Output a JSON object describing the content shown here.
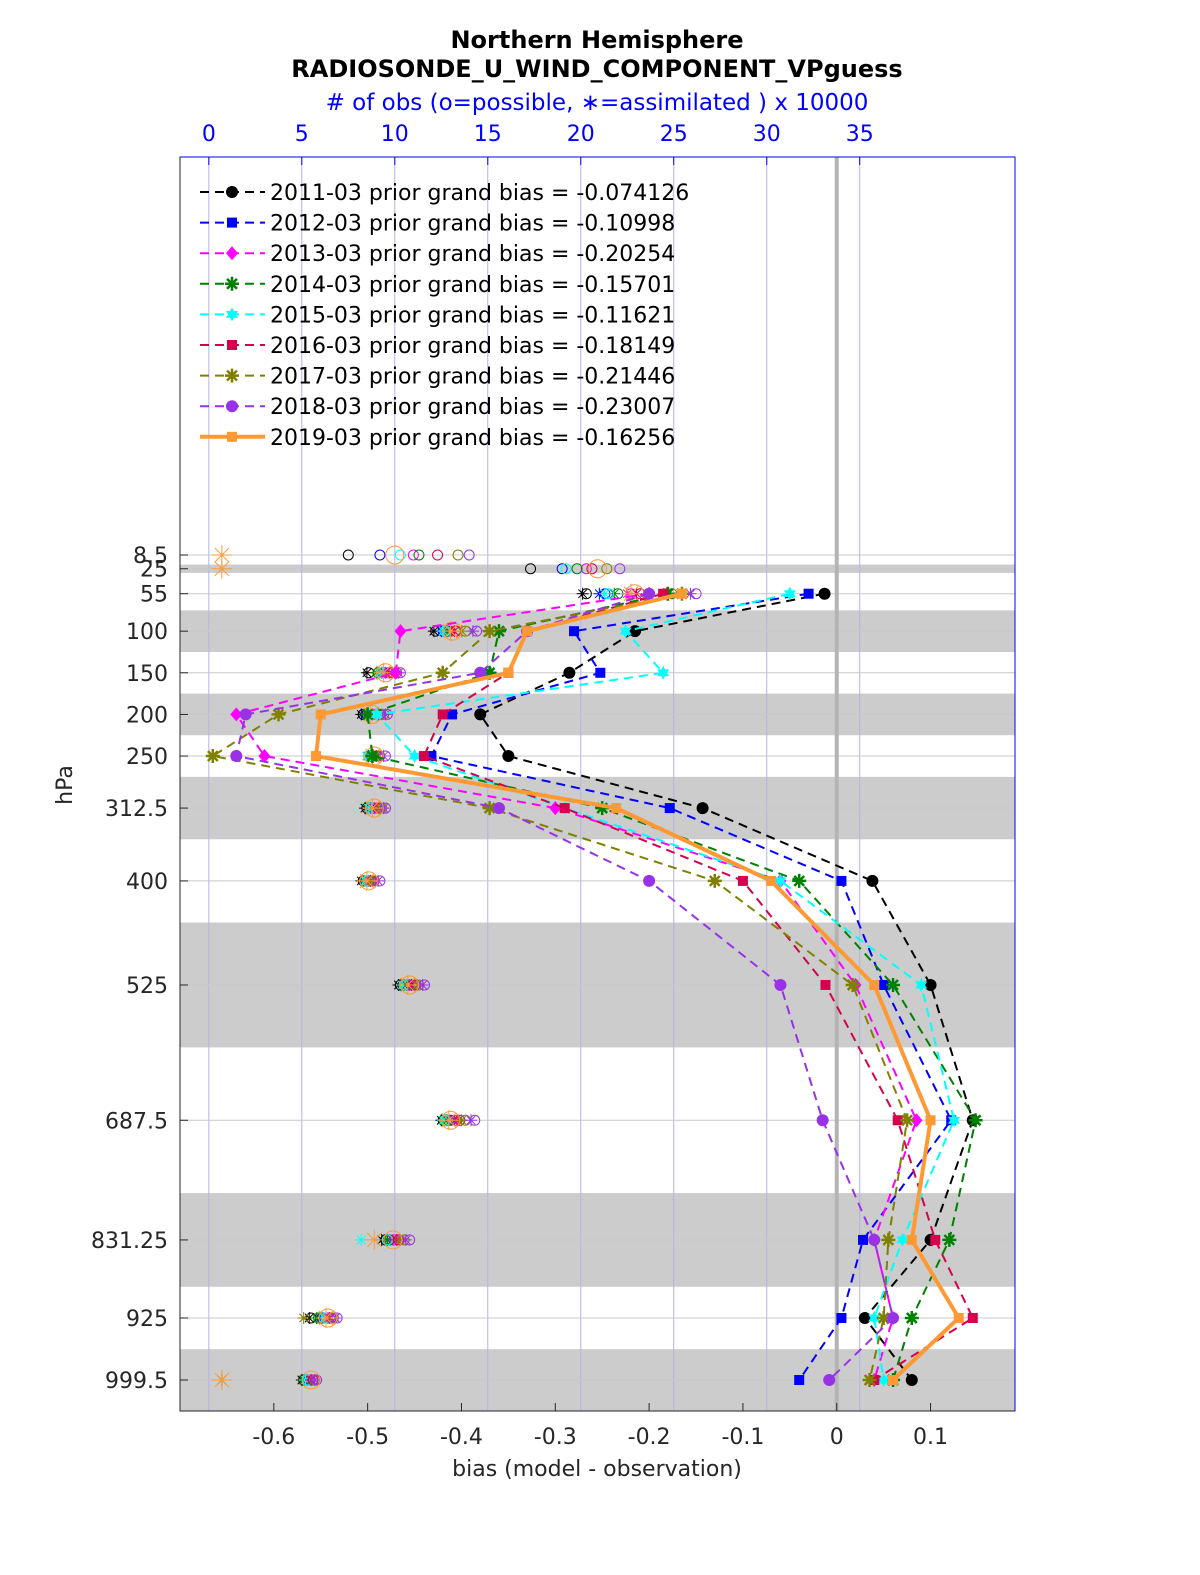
{
  "chart_data": {
    "type": "line",
    "title": "Northern Hemisphere",
    "subtitle": "RADIOSONDE_U_WIND_COMPONENT_VPguess",
    "xlabel": "bias (model - observation)",
    "ylabel": "hPa",
    "top_xlabel": "# of obs (o=possible, ∗=assimilated ) x 10000",
    "xlim": [
      -0.7,
      0.19
    ],
    "x_ticks": [
      "-0.6",
      "-0.5",
      "-0.4",
      "-0.3",
      "-0.2",
      "-0.1",
      "0",
      "0.1"
    ],
    "top_xlim": [
      -1.55,
      43.35
    ],
    "top_x_ticks": [
      "0",
      "5",
      "10",
      "15",
      "20",
      "25",
      "30",
      "35"
    ],
    "y_categories": [
      "8.5",
      "25",
      "55",
      "100",
      "150",
      "200",
      "250",
      "312.5",
      "400",
      "525",
      "687.5",
      "831.25",
      "925",
      "999.5"
    ],
    "y_shaded_bands": [
      [
        20,
        30
      ],
      [
        75,
        125
      ],
      [
        175,
        225
      ],
      [
        275,
        350
      ],
      [
        450,
        600
      ],
      [
        775,
        887.5
      ],
      [
        962.5,
        1037
      ]
    ],
    "legend_location": "top-left",
    "series": [
      {
        "name": "2011-03 prior grand bias = -0.074126",
        "color": "#000000",
        "marker": "circle",
        "x": [
          null,
          null,
          -0.013,
          -0.215,
          -0.285,
          -0.38,
          -0.35,
          -0.143,
          0.038,
          0.1,
          0.145,
          0.1,
          0.03,
          0.08
        ]
      },
      {
        "name": "2012-03 prior grand bias = -0.10998",
        "color": "#0000ff",
        "marker": "square",
        "x": [
          null,
          null,
          -0.03,
          -0.28,
          -0.252,
          -0.41,
          -0.432,
          -0.178,
          0.005,
          0.05,
          0.122,
          0.028,
          0.005,
          -0.04
        ]
      },
      {
        "name": "2013-03 prior grand bias = -0.20254",
        "color": "#ff00ff",
        "marker": "diamond",
        "x": [
          null,
          null,
          -0.2,
          -0.465,
          -0.47,
          -0.64,
          -0.61,
          -0.3,
          -0.06,
          0.02,
          0.085,
          0.04,
          0.06,
          0.04
        ]
      },
      {
        "name": "2014-03 prior grand bias = -0.15701",
        "color": "#008000",
        "marker": "star",
        "x": [
          null,
          null,
          -0.18,
          -0.36,
          -0.37,
          -0.5,
          -0.495,
          -0.25,
          -0.04,
          0.06,
          0.148,
          0.12,
          0.08,
          0.06
        ]
      },
      {
        "name": "2015-03 prior grand bias = -0.11621",
        "color": "#00ffff",
        "marker": "hexagram",
        "x": [
          null,
          null,
          -0.05,
          -0.225,
          -0.185,
          -0.49,
          -0.45,
          -0.29,
          -0.06,
          0.09,
          0.125,
          0.07,
          0.04,
          0.05
        ]
      },
      {
        "name": "2016-03 prior grand bias = -0.18149",
        "color": "#d6004f",
        "marker": "square",
        "x": [
          null,
          null,
          -0.185,
          -0.33,
          -0.35,
          -0.42,
          -0.44,
          -0.29,
          -0.1,
          -0.012,
          0.065,
          0.105,
          0.145,
          0.04
        ]
      },
      {
        "name": "2017-03 prior grand bias = -0.21446",
        "color": "#808000",
        "marker": "star",
        "x": [
          null,
          null,
          -0.165,
          -0.37,
          -0.42,
          -0.595,
          -0.665,
          -0.37,
          -0.13,
          0.017,
          0.075,
          0.055,
          0.05,
          0.035
        ]
      },
      {
        "name": "2018-03 prior grand bias = -0.23007",
        "color": "#9932e6",
        "marker": "circle",
        "x": [
          null,
          null,
          -0.2,
          -0.33,
          -0.38,
          -0.63,
          -0.64,
          -0.36,
          -0.2,
          -0.06,
          -0.015,
          0.04,
          0.06,
          -0.008
        ]
      },
      {
        "name": "2019-03 prior grand bias = -0.16256",
        "color": "#ff9933",
        "marker": "square",
        "bold": true,
        "x": [
          null,
          null,
          -0.165,
          -0.33,
          -0.35,
          -0.55,
          -0.555,
          -0.235,
          -0.07,
          0.04,
          0.1,
          0.08,
          0.13,
          0.06
        ]
      }
    ],
    "obs_counts": {
      "possible": [
        [
          7.5,
          17.3,
          20.3,
          12.2,
          8.6,
          8.3,
          8.7,
          8.5,
          8.3,
          10.3,
          12.6,
          9.5,
          5.5,
          5.1
        ],
        [
          9.2,
          19,
          21.3,
          12.6,
          9.4,
          8.5,
          8.6,
          8.8,
          8.5,
          10.7,
          13,
          9.7,
          6.1,
          5.3
        ],
        [
          11,
          20.3,
          22.7,
          13,
          9.6,
          8.9,
          8.9,
          9,
          8.7,
          10.9,
          13.3,
          10,
          6.5,
          5.4
        ],
        [
          11.3,
          19.8,
          22,
          12.9,
          9.1,
          8.6,
          8.8,
          8.7,
          8.6,
          10.6,
          12.9,
          9.7,
          5.9,
          5.2
        ],
        [
          10.3,
          19.2,
          21.5,
          12.7,
          9.3,
          8.7,
          8.6,
          8.7,
          8.5,
          10.5,
          12.7,
          9.6,
          6.3,
          5.3
        ],
        [
          12.3,
          20.6,
          23.2,
          13.3,
          9.8,
          9.2,
          9.1,
          9.2,
          8.8,
          11.1,
          13.5,
          10.2,
          6.6,
          5.6
        ],
        [
          13.4,
          21.4,
          24.9,
          13.8,
          10.1,
          9.4,
          9.2,
          9.3,
          8.9,
          11.3,
          13.8,
          10.5,
          6.7,
          5.7
        ],
        [
          14,
          22.1,
          26.2,
          14.4,
          10.3,
          9.6,
          9.5,
          9.5,
          9.2,
          11.6,
          14.3,
          10.8,
          6.9,
          5.8
        ],
        [
          10,
          20.9,
          22.9,
          13.1,
          9.5,
          8.8,
          8.9,
          8.9,
          8.6,
          10.8,
          13,
          9.9,
          6.4,
          5.5
        ]
      ],
      "assimilated": [
        [
          null,
          null,
          20.1,
          12.1,
          8.5,
          8.2,
          8.6,
          8.4,
          8.2,
          10.2,
          12.5,
          9.3,
          5.4,
          5
        ],
        [
          null,
          null,
          21,
          12.5,
          9.3,
          8.4,
          8.5,
          8.7,
          8.4,
          10.5,
          12.8,
          9.6,
          6,
          5.2
        ],
        [
          null,
          null,
          22.5,
          12.8,
          9.5,
          8.8,
          8.8,
          8.9,
          8.6,
          10.8,
          13.2,
          9.9,
          6.4,
          5.3
        ],
        [
          null,
          null,
          21.8,
          12.8,
          9,
          8.5,
          8.7,
          8.6,
          8.5,
          10.5,
          12.7,
          9.6,
          5.8,
          5.1
        ],
        [
          null,
          null,
          21.3,
          12.6,
          9.2,
          8.6,
          8.5,
          8.6,
          8.4,
          10.4,
          12.6,
          8.2,
          6.2,
          5.2
        ],
        [
          null,
          null,
          23,
          13.2,
          9.7,
          9.1,
          9,
          9.1,
          8.7,
          10.9,
          13.4,
          10.1,
          6.5,
          5.5
        ],
        [
          null,
          null,
          24.6,
          13.6,
          10,
          9.3,
          9.1,
          9.2,
          8.8,
          11.2,
          13.6,
          10.3,
          5.1,
          0.7
        ],
        [
          null,
          null,
          25.9,
          14.2,
          10.2,
          9.5,
          9.4,
          9.4,
          9.1,
          11.5,
          14.1,
          10.6,
          6.8,
          5.7
        ],
        [
          0.7,
          0.7,
          22.7,
          13,
          9.4,
          8.7,
          8.8,
          8.8,
          8.5,
          10.7,
          12.9,
          8.9,
          6.3,
          0.7
        ]
      ]
    }
  }
}
